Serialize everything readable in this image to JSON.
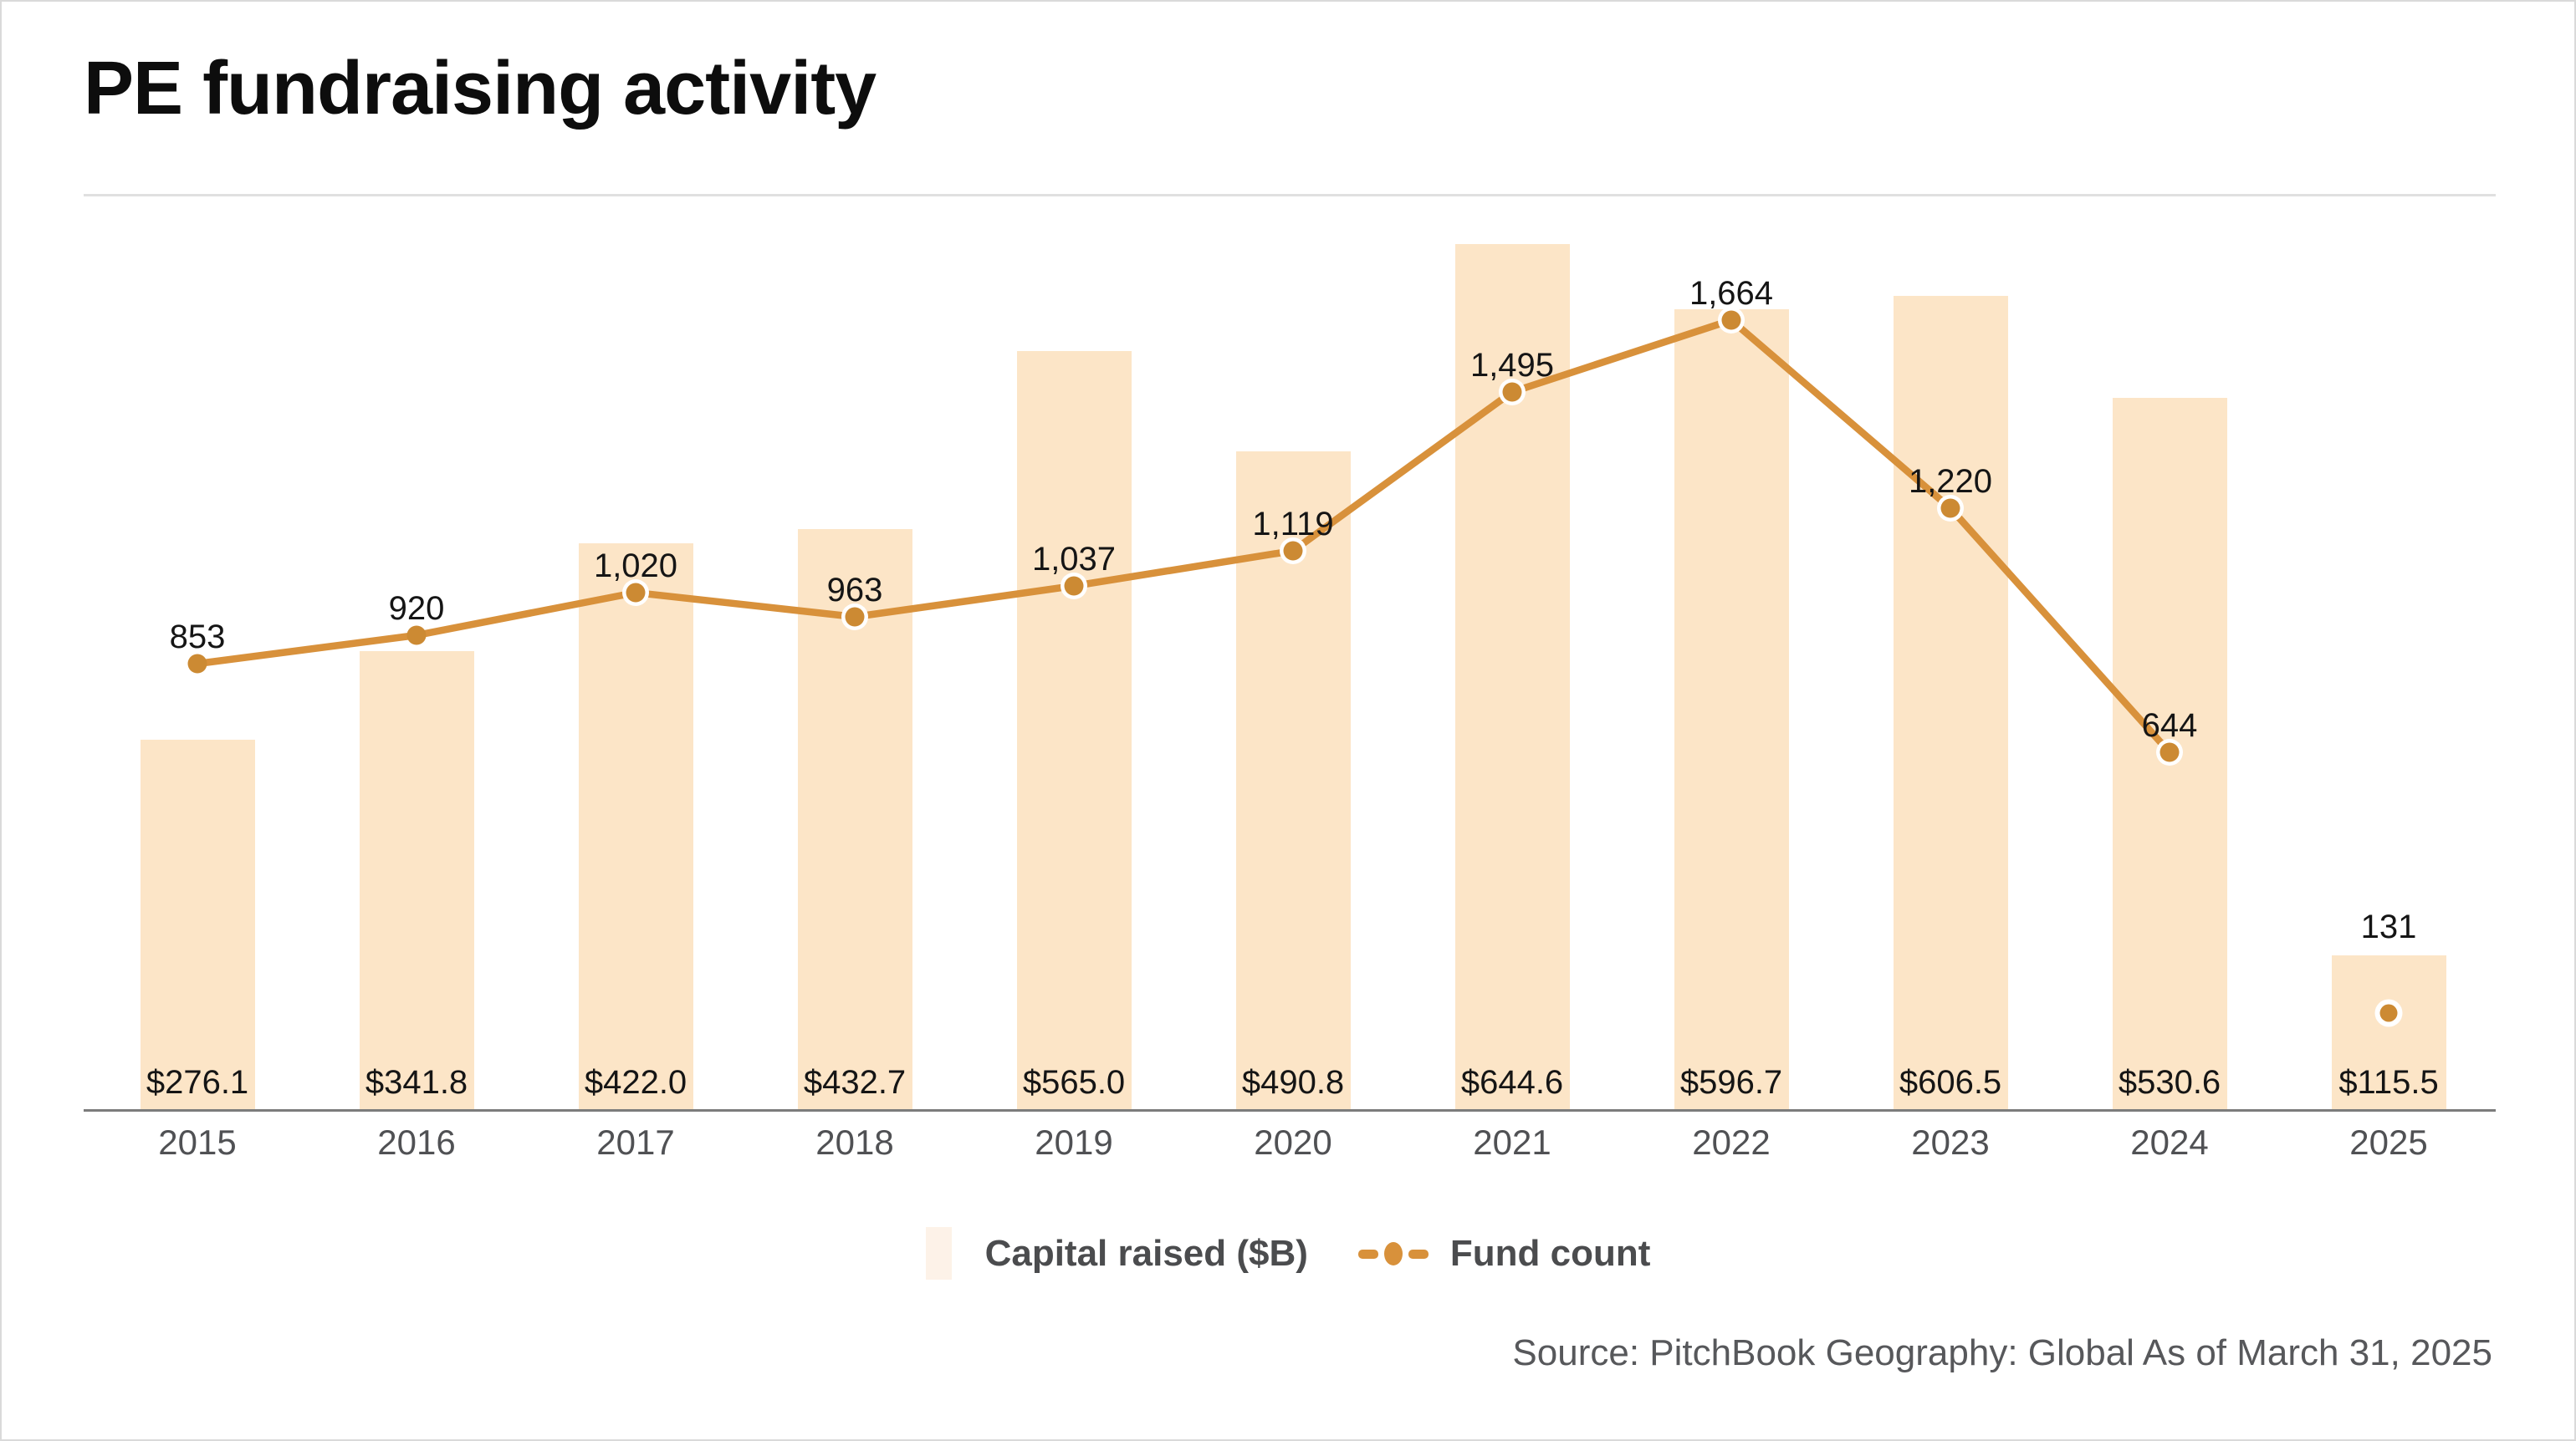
{
  "title": "PE fundraising activity",
  "source": "Source: PitchBook Geography: Global As of March 31, 2025",
  "legend": {
    "capital_label": "Capital raised ($B)",
    "fund_label": "Fund count",
    "capital_swatch_icon": "bar-swatch",
    "fund_icon": "dash-dot-line-icon"
  },
  "colors": {
    "bar": "#FCE5C7",
    "legend_swatch": "#FDF2E8",
    "line": "#D8913B",
    "dot": "#CC8A33",
    "dot_ring": "#FFFFFF",
    "axis": "#7C7C7C",
    "divider": "#E0E0E0",
    "border": "#DADADA",
    "year_text": "#505154",
    "value_text": "#151515",
    "legend_text": "#4B4C4E",
    "source_text": "#57585B",
    "title_text": "#0D0D0D"
  },
  "chart_data": {
    "type": "combo-bar-line",
    "title": "PE fundraising activity",
    "categories": [
      "2015",
      "2016",
      "2017",
      "2018",
      "2019",
      "2020",
      "2021",
      "2022",
      "2023",
      "2024",
      "2025"
    ],
    "series": [
      {
        "name": "Capital raised ($B)",
        "type": "bar",
        "values": [
          276.1,
          341.8,
          422.0,
          432.7,
          565.0,
          490.8,
          644.6,
          596.7,
          606.5,
          530.6,
          115.5
        ],
        "display_values": [
          "$276.1",
          "$341.8",
          "$422.0",
          "$432.7",
          "$565.0",
          "$490.8",
          "$644.6",
          "$596.7",
          "$606.5",
          "$530.6",
          "$115.5"
        ]
      },
      {
        "name": "Fund count",
        "type": "line",
        "values": [
          853,
          920,
          1020,
          963,
          1037,
          1119,
          1495,
          1664,
          1220,
          644,
          131
        ],
        "display_values": [
          "853",
          "920",
          "1,020",
          "963",
          "1,037",
          "1,119",
          "1,495",
          "1,664",
          "1,220",
          "644",
          "131"
        ],
        "last_point_detached": true
      }
    ],
    "xlabel": "",
    "ylabel": "",
    "grid": false,
    "legend_position": "bottom",
    "value_labels": "shown"
  }
}
